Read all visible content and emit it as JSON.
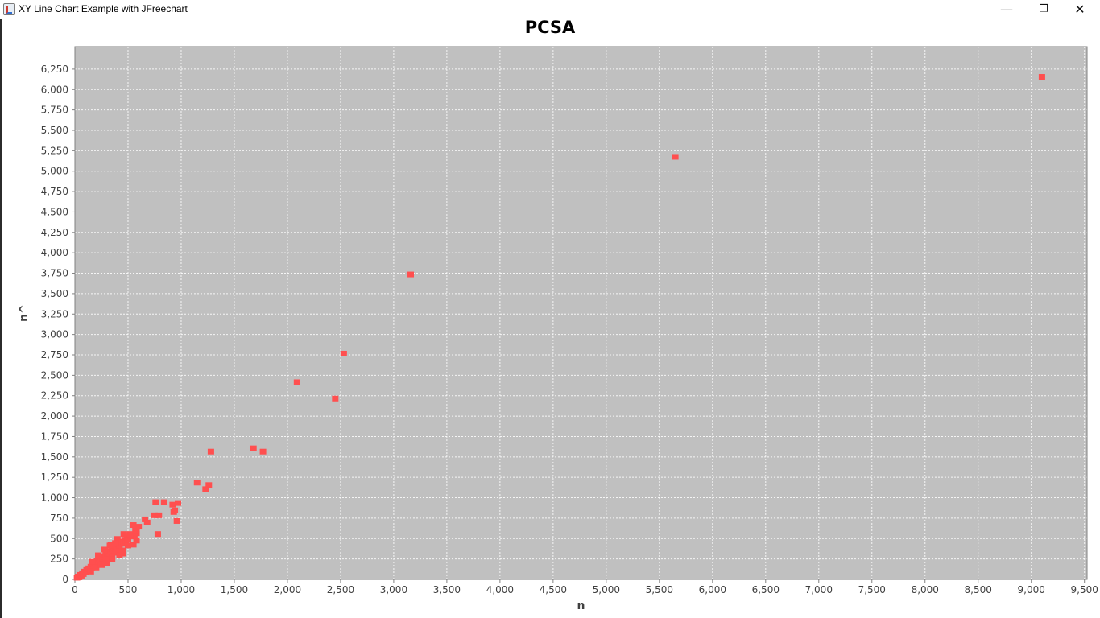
{
  "window": {
    "title": "XY Line Chart Example with JFreechart",
    "minimize_label": "—",
    "restore_label": "❐",
    "close_label": "✕"
  },
  "chart_data": {
    "type": "scatter",
    "title": "PCSA",
    "xlabel": "n",
    "ylabel": "n^",
    "xlim": [
      0,
      9525
    ],
    "ylim": [
      0,
      6525
    ],
    "x_ticks": [
      0,
      500,
      1000,
      1500,
      2000,
      2500,
      3000,
      3500,
      4000,
      4500,
      5000,
      5500,
      6000,
      6500,
      7000,
      7500,
      8000,
      8500,
      9000,
      9500
    ],
    "y_ticks": [
      0,
      250,
      500,
      750,
      1000,
      1250,
      1500,
      1750,
      2000,
      2250,
      2500,
      2750,
      3000,
      3250,
      3500,
      3750,
      4000,
      4250,
      4500,
      4750,
      5000,
      5250,
      5500,
      5750,
      6000,
      6250
    ],
    "grid": true,
    "legend": "none",
    "colors": {
      "plot_background": "#c0c0c0",
      "point": "#ff4f4f",
      "grid": "#ffffff"
    },
    "series": [
      {
        "points": [
          [
            20,
            25
          ],
          [
            30,
            40
          ],
          [
            40,
            30
          ],
          [
            50,
            60
          ],
          [
            60,
            50
          ],
          [
            70,
            80
          ],
          [
            80,
            70
          ],
          [
            90,
            100
          ],
          [
            100,
            90
          ],
          [
            110,
            120
          ],
          [
            120,
            110
          ],
          [
            130,
            140
          ],
          [
            140,
            130
          ],
          [
            150,
            160
          ],
          [
            160,
            150
          ],
          [
            170,
            190
          ],
          [
            180,
            170
          ],
          [
            190,
            210
          ],
          [
            200,
            200
          ],
          [
            210,
            230
          ],
          [
            220,
            210
          ],
          [
            230,
            250
          ],
          [
            240,
            240
          ],
          [
            250,
            270
          ],
          [
            260,
            260
          ],
          [
            270,
            290
          ],
          [
            280,
            280
          ],
          [
            290,
            310
          ],
          [
            300,
            300
          ],
          [
            310,
            330
          ],
          [
            320,
            310
          ],
          [
            330,
            350
          ],
          [
            340,
            340
          ],
          [
            350,
            370
          ],
          [
            360,
            360
          ],
          [
            370,
            390
          ],
          [
            380,
            380
          ],
          [
            390,
            410
          ],
          [
            400,
            400
          ],
          [
            410,
            430
          ],
          [
            420,
            420
          ],
          [
            430,
            450
          ],
          [
            440,
            440
          ],
          [
            450,
            470
          ],
          [
            460,
            460
          ],
          [
            470,
            490
          ],
          [
            480,
            480
          ],
          [
            490,
            510
          ],
          [
            500,
            500
          ],
          [
            520,
            540
          ],
          [
            540,
            530
          ],
          [
            560,
            550
          ],
          [
            580,
            570
          ],
          [
            150,
            100
          ],
          [
            200,
            150
          ],
          [
            250,
            180
          ],
          [
            300,
            250
          ],
          [
            350,
            280
          ],
          [
            400,
            330
          ],
          [
            450,
            360
          ],
          [
            500,
            420
          ],
          [
            550,
            430
          ],
          [
            580,
            480
          ],
          [
            160,
            220
          ],
          [
            220,
            300
          ],
          [
            280,
            370
          ],
          [
            340,
            430
          ],
          [
            400,
            500
          ],
          [
            460,
            560
          ],
          [
            520,
            560
          ],
          [
            300,
            200
          ],
          [
            350,
            250
          ],
          [
            420,
            300
          ],
          [
            450,
            320
          ],
          [
            380,
            450
          ],
          [
            330,
            420
          ],
          [
            570,
            610
          ],
          [
            580,
            640
          ],
          [
            600,
            650
          ],
          [
            550,
            670
          ],
          [
            660,
            740
          ],
          [
            680,
            700
          ],
          [
            750,
            790
          ],
          [
            760,
            950
          ],
          [
            790,
            790
          ],
          [
            780,
            560
          ],
          [
            840,
            950
          ],
          [
            920,
            920
          ],
          [
            930,
            830
          ],
          [
            940,
            850
          ],
          [
            960,
            720
          ],
          [
            970,
            940
          ],
          [
            1150,
            1190
          ],
          [
            1230,
            1110
          ],
          [
            1260,
            1160
          ],
          [
            1280,
            1570
          ],
          [
            1680,
            1610
          ],
          [
            1770,
            1570
          ],
          [
            2090,
            2420
          ],
          [
            2450,
            2220
          ],
          [
            2530,
            2770
          ],
          [
            3160,
            3740
          ],
          [
            5650,
            5180
          ],
          [
            9100,
            6160
          ]
        ]
      }
    ]
  }
}
